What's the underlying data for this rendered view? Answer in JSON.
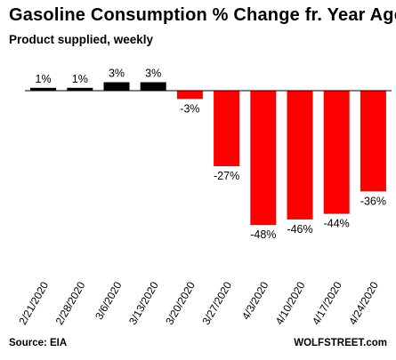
{
  "chart_data": {
    "type": "bar",
    "title": "Gasoline Consumption % Change fr. Year Ago",
    "subtitle": "Product supplied, weekly",
    "categories": [
      "2/21/2020",
      "2/28/2020",
      "3/6/2020",
      "3/13/2020",
      "3/20/2020",
      "3/27/2020",
      "4/3/2020",
      "4/10/2020",
      "4/17/2020",
      "4/24/2020"
    ],
    "values": [
      1,
      1,
      3,
      3,
      -3,
      -27,
      -48,
      -46,
      -44,
      -36
    ],
    "data_labels": [
      "1%",
      "1%",
      "3%",
      "3%",
      "-3%",
      "-27%",
      "-48%",
      "-46%",
      "-44%",
      "-36%"
    ],
    "xlabel": "",
    "ylabel": "",
    "grid": false,
    "colors": {
      "positive": "#000000",
      "negative": "#ff0000"
    }
  },
  "footer": {
    "source": "Source: EIA",
    "credit": "WOLFSTREET.com"
  }
}
